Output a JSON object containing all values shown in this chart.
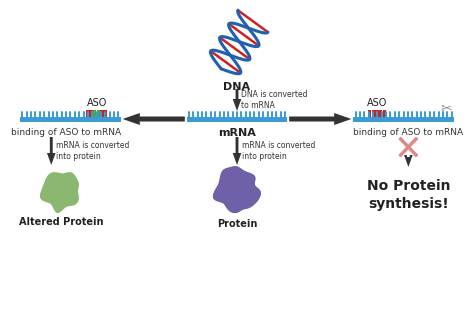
{
  "bg_color": "#ffffff",
  "title": "DNA",
  "mrna_label": "mRNA",
  "aso_label": "ASO",
  "dna_converted_text": "DNA is converted\nto mRNA",
  "mrna_converted_text1": "mRNA is converted\ninto protein",
  "mrna_converted_text2": "mRNA is converted\ninto protein",
  "binding_left": "binding of ASO to mRNA",
  "binding_right": "binding of ASO to mRNA",
  "no_protein_text": "No Protein\nsynthesis!",
  "altered_protein_label": "Altered Protein",
  "protein_label": "Protein",
  "mrna_color": "#3a9bd5",
  "aso_red_color": "#cc2222",
  "aso_green_color": "#44aa44",
  "arrow_color": "#333333",
  "protein_green_color": "#8ab870",
  "protein_purple_color": "#7060a8",
  "no_protein_x_color": "#e08888",
  "scissors_color": "#888888",
  "dna_color": "#2060b0",
  "text_color": "#222222",
  "label_fontsize": 6.5,
  "title_fontsize": 8.0,
  "aso_fontsize": 7.0,
  "noprot_fontsize": 10.0
}
